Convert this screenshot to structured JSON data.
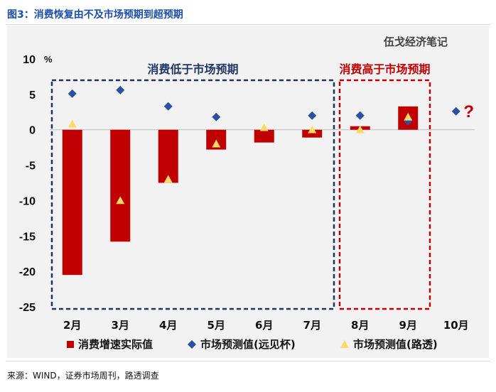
{
  "figure": {
    "title": "图3：消费恢复由不及市场预期到超预期",
    "watermark": "伍戈经济笔记",
    "source": "来源：WIND，证券市场周刊，路透调查"
  },
  "chart_data": {
    "type": "bar",
    "categories": [
      "2月",
      "3月",
      "4月",
      "5月",
      "6月",
      "7月",
      "8月",
      "9月",
      "10月"
    ],
    "series": [
      {
        "name": "消费增速实际值",
        "kind": "bar",
        "color": "#c00000",
        "values": [
          -20.5,
          -15.8,
          -7.5,
          -2.8,
          -1.8,
          -1.1,
          0.5,
          3.3,
          null
        ]
      },
      {
        "name": "市场预测值(远见杯)",
        "kind": "diamond",
        "color": "#2f4f9e",
        "values": [
          5.1,
          5.6,
          3.3,
          1.8,
          null,
          2.0,
          2.0,
          1.2,
          2.6
        ]
      },
      {
        "name": "市场预测值(路透)",
        "kind": "triangle",
        "color": "#ffd966",
        "values": [
          0.8,
          -10.0,
          -7.0,
          -2.0,
          0.3,
          0.0,
          0.0,
          1.8,
          null
        ]
      }
    ],
    "ylim": [
      -25,
      10
    ],
    "yticks": [
      10,
      5,
      0,
      -5,
      -10,
      -15,
      -20,
      -25
    ],
    "ylabel_unit": "%",
    "legend_position": "bottom",
    "annotations": [
      {
        "text": "消费低于市场预期",
        "color": "#1f3564",
        "from_category": "2月",
        "to_category": "7月"
      },
      {
        "text": "消费高于市场预期",
        "color": "#c00000",
        "from_category": "8月",
        "to_category": "9月"
      },
      {
        "text": "?",
        "color": "#c00000",
        "at_category": "10月"
      }
    ],
    "grid": false
  }
}
